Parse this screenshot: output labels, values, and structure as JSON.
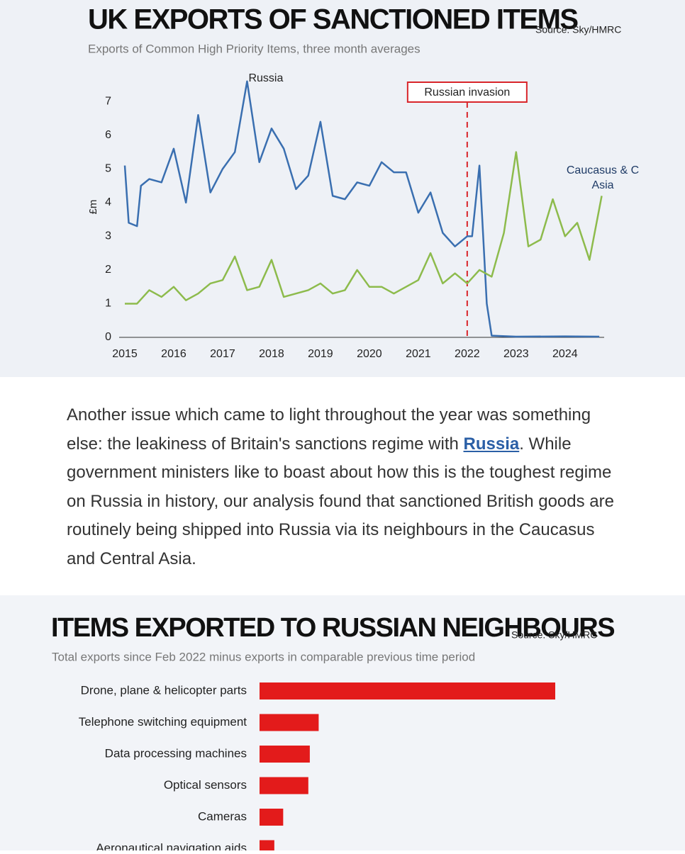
{
  "chart_data": [
    {
      "type": "line",
      "title": "UK EXPORTS OF SANCTIONED ITEMS",
      "subtitle": "Exports of Common High Priority Items, three month averages",
      "source": "Source: Sky/HMRC",
      "y_label": "£m",
      "xlim": [
        2015,
        2024.8
      ],
      "ylim": [
        0,
        7.7
      ],
      "xticks": [
        2015,
        2016,
        2017,
        2018,
        2019,
        2020,
        2021,
        2022,
        2023,
        2024
      ],
      "yticks": [
        0,
        1,
        2,
        3,
        4,
        5,
        6,
        7
      ],
      "annotations": [
        {
          "label": "Russian invasion",
          "x": 2022
        }
      ],
      "series": [
        {
          "name": "Russia",
          "color": "#3a6fb0",
          "x": [
            2015,
            2015.08,
            2015.25,
            2015.33,
            2015.5,
            2015.75,
            2016,
            2016.25,
            2016.5,
            2016.75,
            2017,
            2017.25,
            2017.5,
            2017.75,
            2018,
            2018.25,
            2018.5,
            2018.75,
            2019,
            2019.25,
            2019.5,
            2019.75,
            2020,
            2020.25,
            2020.5,
            2020.75,
            2021,
            2021.25,
            2021.5,
            2021.75,
            2022,
            2022.1,
            2022.25,
            2022.4,
            2022.5,
            2023,
            2024,
            2024.7
          ],
          "values": [
            5.1,
            3.4,
            3.3,
            4.5,
            4.7,
            4.6,
            5.6,
            4.0,
            6.6,
            4.3,
            5.0,
            5.5,
            7.6,
            5.2,
            6.2,
            5.6,
            4.4,
            4.8,
            6.4,
            4.2,
            4.1,
            4.6,
            4.5,
            5.2,
            4.9,
            4.9,
            3.7,
            4.3,
            3.1,
            2.7,
            3.0,
            3.0,
            5.1,
            1.0,
            0.05,
            0.02,
            0.03,
            0.02
          ]
        },
        {
          "name": "Caucasus & C Asia",
          "color": "#8dbb4c",
          "x": [
            2015,
            2015.25,
            2015.5,
            2015.75,
            2016,
            2016.25,
            2016.5,
            2016.75,
            2017,
            2017.25,
            2017.5,
            2017.75,
            2018,
            2018.25,
            2018.5,
            2018.75,
            2019,
            2019.25,
            2019.5,
            2019.75,
            2020,
            2020.25,
            2020.5,
            2020.75,
            2021,
            2021.25,
            2021.5,
            2021.75,
            2022,
            2022.25,
            2022.5,
            2022.75,
            2023,
            2023.25,
            2023.5,
            2023.75,
            2024,
            2024.25,
            2024.5,
            2024.75
          ],
          "values": [
            1.0,
            1.0,
            1.4,
            1.2,
            1.5,
            1.1,
            1.3,
            1.6,
            1.7,
            2.4,
            1.4,
            1.5,
            2.3,
            1.2,
            1.3,
            1.4,
            1.6,
            1.3,
            1.4,
            2.0,
            1.5,
            1.5,
            1.3,
            1.5,
            1.7,
            2.5,
            1.6,
            1.9,
            1.6,
            2.0,
            1.8,
            3.1,
            5.5,
            2.7,
            2.9,
            4.1,
            3.0,
            3.4,
            2.3,
            4.2
          ]
        }
      ]
    },
    {
      "type": "hbar",
      "title": "ITEMS EXPORTED TO RUSSIAN NEIGHBOURS",
      "subtitle": "Total exports since Feb 2022 minus exports in comparable previous time period",
      "source": "Source: Sky/HMRC",
      "color": "#e31b1b",
      "categories": [
        "Drone, plane & helicopter parts",
        "Telephone switching equipment",
        "Data processing machines",
        "Optical sensors",
        "Cameras",
        "Aeronautical navigation aids"
      ],
      "values": [
        100,
        20,
        17,
        16.5,
        8,
        5
      ]
    }
  ],
  "article": {
    "before": "Another issue which came to light throughout the year was something else: the leakiness of Britain's sanctions regime with ",
    "link": "Russia",
    "after": ". While government ministers like to boast about how this is the toughest regime on Russia in history, our analysis found that sanctioned British goods are routinely being shipped into Russia via its neighbours in the Caucasus and Central Asia."
  }
}
